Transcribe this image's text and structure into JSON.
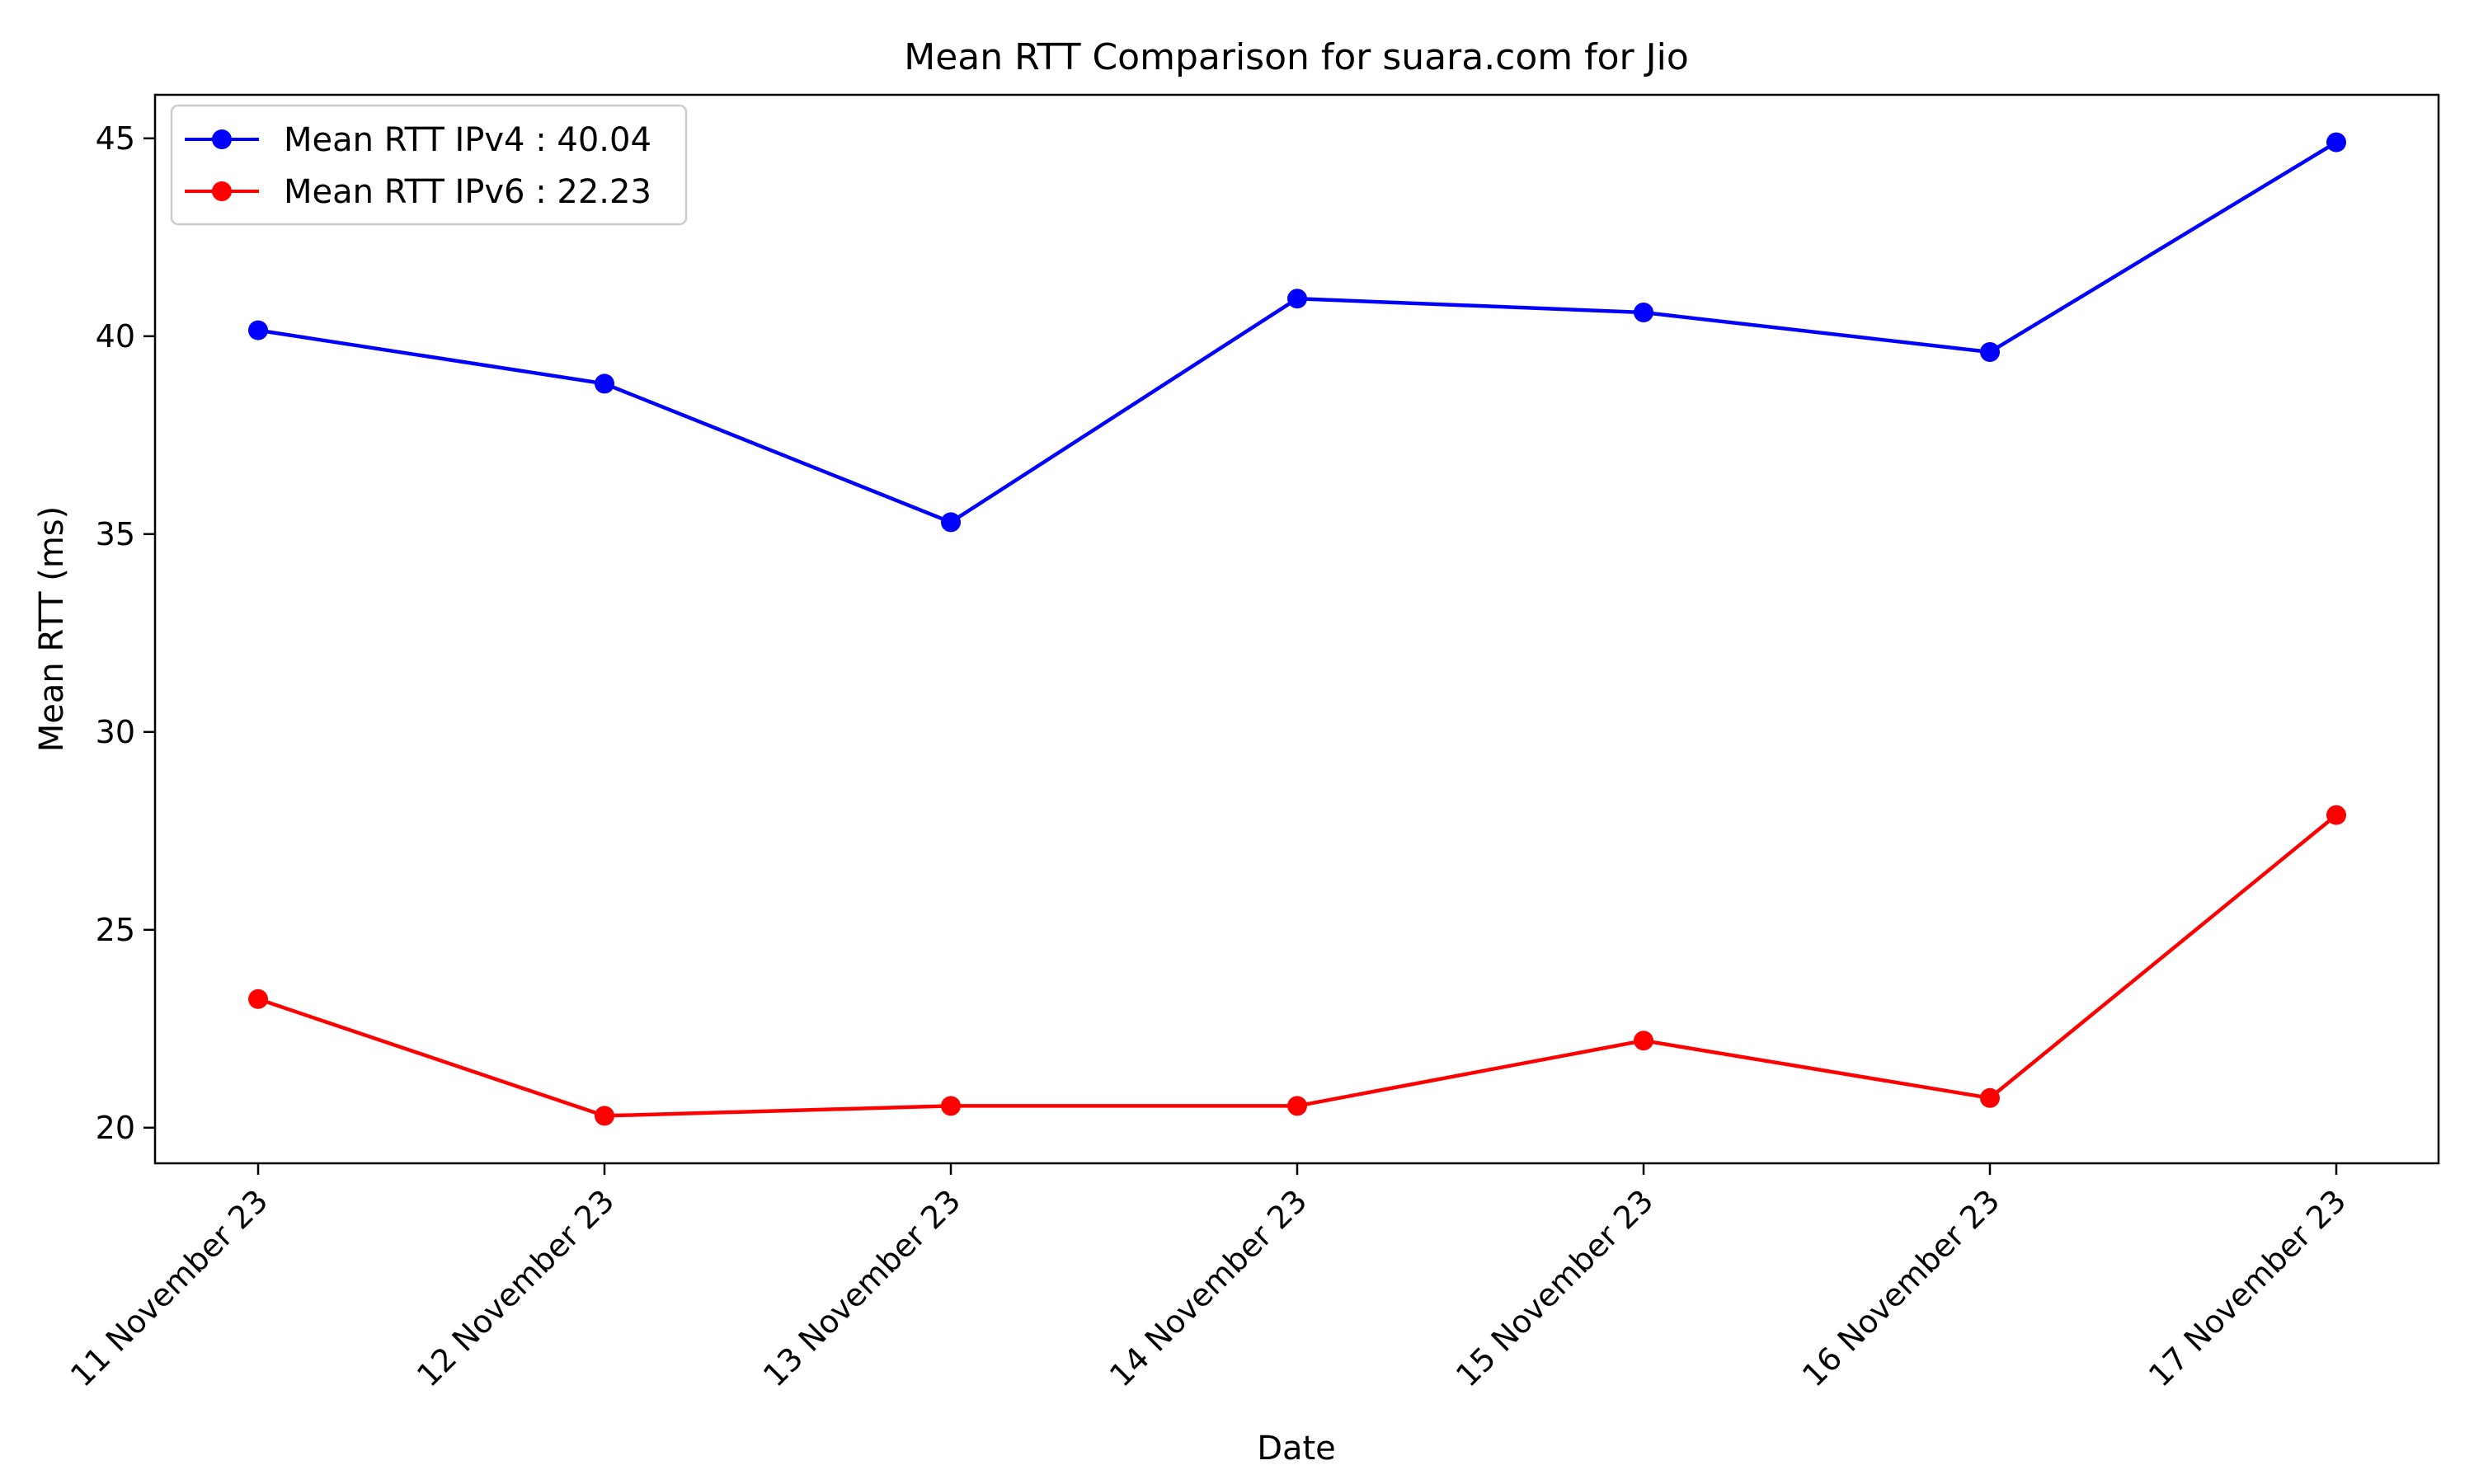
{
  "chart_data": {
    "type": "line",
    "title": "Mean RTT Comparison for suara.com for Jio",
    "xlabel": "Date",
    "ylabel": "Mean RTT (ms)",
    "categories": [
      "11 November 23",
      "12 November 23",
      "13 November 23",
      "14 November 23",
      "15 November 23",
      "16 November 23",
      "17 November 23"
    ],
    "ylim": [
      19.1,
      46.1
    ],
    "yticks": [
      20,
      25,
      30,
      35,
      40,
      45
    ],
    "grid": false,
    "legend": "upper-left",
    "series": [
      {
        "name": "Mean RTT IPv4 : 40.04",
        "color": "#0000ff",
        "values": [
          40.15,
          38.8,
          35.3,
          40.95,
          40.6,
          39.6,
          44.9
        ]
      },
      {
        "name": "Mean RTT IPv6 : 22.23",
        "color": "#ff0000",
        "values": [
          23.25,
          20.3,
          20.55,
          20.55,
          22.2,
          20.75,
          27.9
        ]
      }
    ]
  }
}
